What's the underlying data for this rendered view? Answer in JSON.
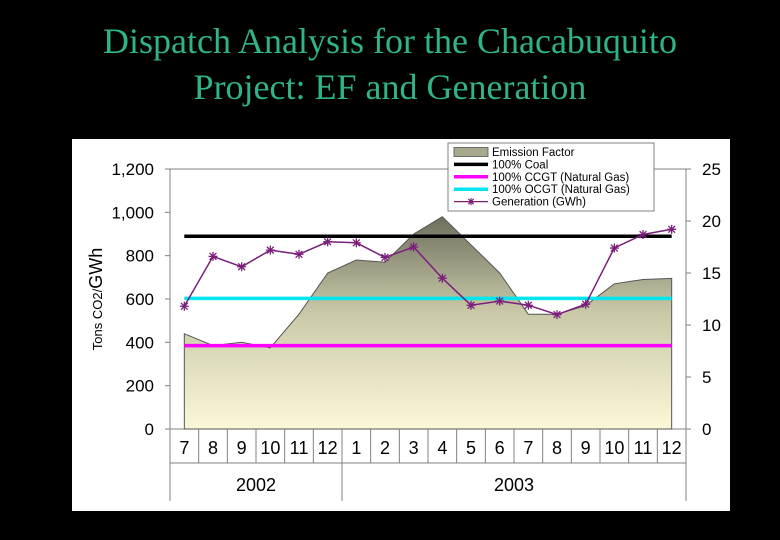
{
  "slide": {
    "title_line1": "Dispatch Analysis for the Chacabuquito",
    "title_line2": "Project: EF and Generation"
  },
  "chart_data": {
    "type": "area",
    "title": "",
    "ylabel_left": "Tons CO2/GWh",
    "ylabel_right": "",
    "ylim_left": [
      0,
      1200
    ],
    "ylim_right": [
      0,
      25
    ],
    "yticks_left": [
      "0",
      "200",
      "400",
      "600",
      "800",
      "1,000",
      "1,200"
    ],
    "yticks_right": [
      "0",
      "5",
      "10",
      "15",
      "20",
      "25"
    ],
    "yticks_left_values": [
      0,
      200,
      400,
      600,
      800,
      1000,
      1200
    ],
    "yticks_right_values": [
      0,
      5,
      10,
      15,
      20,
      25
    ],
    "categories": [
      "7",
      "8",
      "9",
      "10",
      "11",
      "12",
      "1",
      "2",
      "3",
      "4",
      "5",
      "6",
      "7",
      "8",
      "9",
      "10",
      "11",
      "12"
    ],
    "year_groups": [
      {
        "label": "2002",
        "start": 0,
        "end": 6
      },
      {
        "label": "2003",
        "start": 6,
        "end": 18
      }
    ],
    "grid": false,
    "legend_position": "top-right",
    "series": [
      {
        "name": "Emission Factor",
        "type": "area",
        "axis": "left",
        "color": "#a8a88f",
        "values": [
          440,
          385,
          400,
          375,
          530,
          720,
          780,
          770,
          900,
          980,
          850,
          720,
          530,
          530,
          570,
          670,
          690,
          695
        ]
      },
      {
        "name": "100% Coal",
        "type": "line",
        "axis": "left",
        "color": "#000000",
        "values": [
          890,
          890,
          890,
          890,
          890,
          890,
          890,
          890,
          890,
          890,
          890,
          890,
          890,
          890,
          890,
          890,
          890,
          890
        ]
      },
      {
        "name": "100% CCGT (Natural Gas)",
        "type": "line",
        "axis": "left",
        "color": "#ff00ff",
        "values": [
          385,
          385,
          385,
          385,
          385,
          385,
          385,
          385,
          385,
          385,
          385,
          385,
          385,
          385,
          385,
          385,
          385,
          385
        ]
      },
      {
        "name": "100% OCGT (Natural Gas)",
        "type": "line",
        "axis": "left",
        "color": "#00e5ee",
        "values": [
          603,
          603,
          603,
          603,
          603,
          603,
          603,
          603,
          603,
          603,
          603,
          603,
          603,
          603,
          603,
          603,
          603,
          603
        ]
      },
      {
        "name": "Generation (GWh)",
        "type": "line-markers",
        "axis": "right",
        "color": "#7a1f7a",
        "values": [
          11.8,
          16.6,
          15.6,
          17.2,
          16.8,
          18.0,
          17.9,
          16.5,
          17.5,
          14.5,
          11.9,
          12.3,
          11.9,
          11.0,
          12.0,
          17.4,
          18.7,
          19.2
        ]
      }
    ]
  }
}
